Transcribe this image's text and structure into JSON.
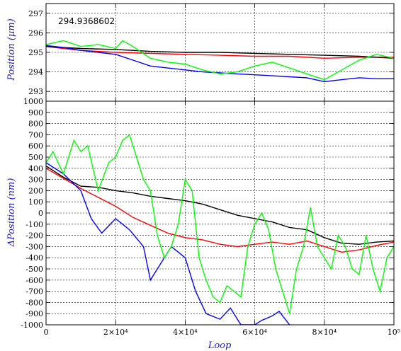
{
  "chart_data": [
    {
      "type": "line",
      "title": "",
      "annotation": "294.9368602",
      "xlabel": "",
      "ylabel": "Position (µm)",
      "xlim": [
        0,
        100000
      ],
      "ylim": [
        292.5,
        297.5
      ],
      "yticks": [
        293,
        294,
        295,
        296,
        297
      ],
      "grid": true,
      "series": [
        {
          "color": "#ff0000",
          "x": [
            0,
            5000,
            10000,
            15000,
            20000,
            30000,
            40000,
            50000,
            60000,
            70000,
            80000,
            90000,
            100000
          ],
          "y": [
            295.3,
            295.2,
            295.1,
            295.05,
            295.0,
            294.95,
            294.9,
            294.85,
            294.8,
            294.8,
            294.7,
            294.75,
            294.75
          ]
        },
        {
          "color": "#000000",
          "x": [
            0,
            10000,
            20000,
            30000,
            40000,
            50000,
            60000,
            70000,
            80000,
            90000,
            100000
          ],
          "y": [
            295.3,
            295.2,
            295.15,
            295.05,
            295.0,
            295.0,
            294.95,
            294.9,
            294.85,
            294.8,
            294.7
          ]
        },
        {
          "color": "#0000ff",
          "x": [
            0,
            5000,
            10000,
            15000,
            20000,
            25000,
            30000,
            35000,
            40000,
            45000,
            50000,
            55000,
            60000,
            65000,
            70000,
            75000,
            80000,
            85000,
            90000,
            95000,
            100000
          ],
          "y": [
            295.35,
            295.25,
            295.1,
            295.0,
            294.9,
            294.6,
            294.3,
            294.2,
            294.1,
            294.0,
            293.95,
            293.9,
            293.85,
            293.8,
            293.75,
            293.7,
            293.5,
            293.6,
            293.7,
            293.65,
            293.65
          ]
        },
        {
          "color": "#00ff00",
          "x": [
            0,
            5000,
            10000,
            15000,
            20000,
            22000,
            25000,
            30000,
            35000,
            40000,
            45000,
            50000,
            55000,
            60000,
            65000,
            70000,
            75000,
            80000,
            85000,
            90000,
            95000,
            100000
          ],
          "y": [
            295.4,
            295.6,
            295.3,
            295.4,
            295.2,
            295.6,
            295.3,
            294.7,
            294.5,
            294.4,
            294.1,
            293.9,
            294.0,
            294.3,
            294.5,
            294.2,
            293.9,
            293.6,
            294.1,
            294.6,
            294.9,
            294.7
          ]
        }
      ]
    },
    {
      "type": "line",
      "title": "",
      "xlabel": "Loop",
      "ylabel": "ΔPosition (nm)",
      "xlim": [
        0,
        100000
      ],
      "ylim": [
        -1000,
        1000
      ],
      "yticks": [
        -1000,
        -900,
        -800,
        -700,
        -600,
        -500,
        -400,
        -300,
        -200,
        -100,
        0,
        100,
        200,
        300,
        400,
        500,
        600,
        700,
        800,
        900,
        1000
      ],
      "xticks": [
        0,
        20000,
        40000,
        60000,
        80000,
        100000
      ],
      "xtick_labels": [
        "0",
        "2×10⁴",
        "4×10⁴",
        "6×10⁴",
        "8×10⁴",
        "10⁵"
      ],
      "grid": true,
      "series": [
        {
          "color": "#000000",
          "x": [
            0,
            5000,
            10000,
            15000,
            20000,
            25000,
            30000,
            35000,
            40000,
            45000,
            50000,
            55000,
            60000,
            65000,
            70000,
            75000,
            80000,
            85000,
            90000,
            95000,
            100000
          ],
          "y": [
            420,
            320,
            240,
            230,
            200,
            180,
            150,
            130,
            110,
            80,
            30,
            -20,
            -50,
            -80,
            -130,
            -150,
            -220,
            -270,
            -280,
            -260,
            -250
          ]
        },
        {
          "color": "#ff0000",
          "x": [
            0,
            5000,
            10000,
            15000,
            20000,
            25000,
            30000,
            35000,
            40000,
            45000,
            50000,
            55000,
            60000,
            65000,
            70000,
            75000,
            80000,
            85000,
            90000,
            95000,
            100000
          ],
          "y": [
            400,
            310,
            220,
            140,
            60,
            -40,
            -110,
            -180,
            -220,
            -240,
            -280,
            -300,
            -280,
            -260,
            -280,
            -250,
            -300,
            -350,
            -330,
            -290,
            -260
          ]
        },
        {
          "color": "#0000ff",
          "x": [
            0,
            5000,
            10000,
            13000,
            16000,
            20000,
            24000,
            28000,
            30000,
            33000,
            36000,
            38000,
            40000,
            41000,
            43000,
            46000,
            50000,
            53000,
            56000,
            60000,
            62000,
            65000,
            67000,
            70000
          ],
          "y": [
            450,
            350,
            200,
            -50,
            -180,
            -50,
            -150,
            -300,
            -600,
            -450,
            -300,
            -350,
            -400,
            -500,
            -700,
            -900,
            -950,
            -850,
            -1000,
            -1000,
            -960,
            -920,
            -880,
            -1000
          ]
        },
        {
          "color": "#00ff00",
          "x": [
            0,
            2000,
            5000,
            8000,
            10000,
            12000,
            15000,
            18000,
            20000,
            22000,
            24000,
            26000,
            28000,
            30000,
            32000,
            34000,
            36000,
            38000,
            40000,
            42000,
            44000,
            46000,
            48000,
            50000,
            52000,
            54000,
            56000,
            58000,
            60000,
            62000,
            64000,
            66000,
            68000,
            70000,
            72000,
            74000,
            76000,
            78000,
            80000,
            82000,
            84000,
            86000,
            88000,
            90000,
            92000,
            94000,
            96000,
            98000,
            100000
          ],
          "y": [
            450,
            550,
            350,
            650,
            550,
            600,
            200,
            450,
            500,
            650,
            700,
            500,
            300,
            200,
            -200,
            -400,
            -300,
            -100,
            300,
            200,
            -400,
            -600,
            -750,
            -800,
            -650,
            -700,
            -750,
            -300,
            -100,
            0,
            -150,
            -500,
            -700,
            -900,
            -500,
            -300,
            50,
            -300,
            -400,
            -500,
            -200,
            -300,
            -500,
            -550,
            -200,
            -500,
            -700,
            -400,
            -300
          ]
        }
      ]
    }
  ]
}
